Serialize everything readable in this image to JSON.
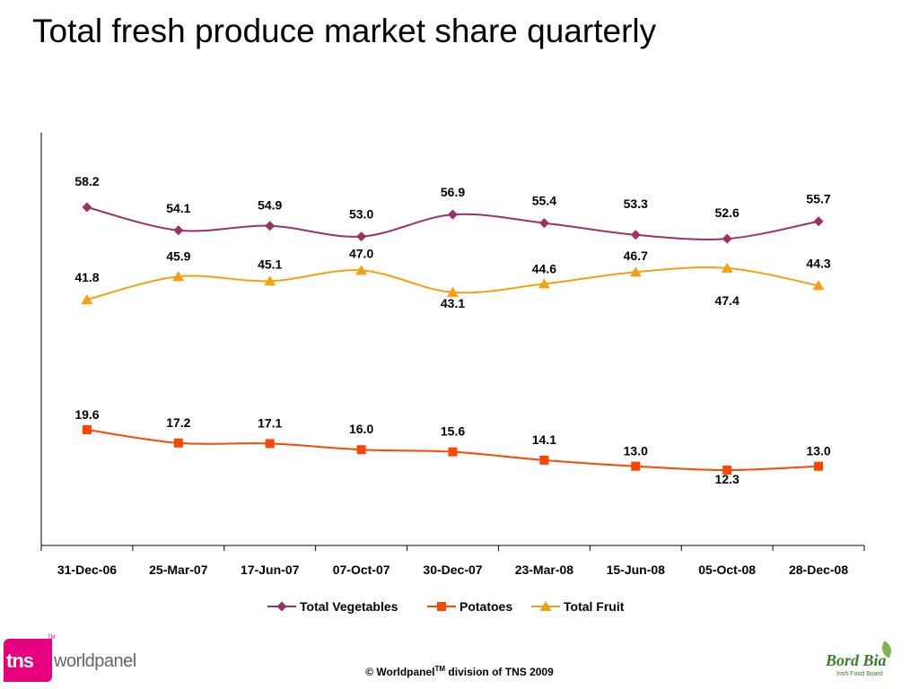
{
  "page": {
    "title": "Total fresh produce market share quarterly",
    "footer_prefix": "© Worldpanel",
    "footer_tm": "TM",
    "footer_suffix": " division of TNS 2009",
    "logo_left": {
      "brand": "tns",
      "product": "worldpanel",
      "tm": "TM",
      "color": "#e6007e"
    },
    "logo_right": {
      "name": "Bord Bia",
      "subtitle": "Irish Food Board",
      "color": "#3a7d2c",
      "leaf_icon": "leaf-icon"
    }
  },
  "chart_data": {
    "type": "line",
    "title": "",
    "xlabel": "",
    "ylabel": "",
    "categories": [
      "31-Dec-06",
      "25-Mar-07",
      "17-Jun-07",
      "07-Oct-07",
      "30-Dec-07",
      "23-Mar-08",
      "15-Jun-08",
      "05-Oct-08",
      "28-Dec-08"
    ],
    "ylim": [
      0,
      70
    ],
    "grid": false,
    "smooth": true,
    "legend_position": "bottom",
    "series": [
      {
        "name": "Total Vegetables",
        "marker": "diamond",
        "color": "#993366",
        "values": [
          58.2,
          54.1,
          54.9,
          53.0,
          56.9,
          55.4,
          53.3,
          52.6,
          55.7
        ],
        "labels": [
          "58.2",
          "54.1",
          "54.9",
          "53.0",
          "56.9",
          "55.4",
          "53.3",
          "52.6",
          "55.7"
        ]
      },
      {
        "name": "Potatoes",
        "marker": "square",
        "color": "#ff4500",
        "values": [
          19.6,
          17.2,
          17.1,
          16.0,
          15.6,
          14.1,
          13.0,
          12.3,
          13.0
        ],
        "labels": [
          "19.6",
          "17.2",
          "17.1",
          "16.0",
          "15.6",
          "14.1",
          "13.0",
          "12.3",
          "13.0"
        ]
      },
      {
        "name": "Total Fruit",
        "marker": "triangle",
        "color": "#f5a00f",
        "values": [
          41.8,
          45.9,
          45.1,
          47.0,
          43.1,
          44.6,
          46.7,
          47.4,
          44.3
        ],
        "labels": [
          "41.8",
          "45.9",
          "45.1",
          "47.0",
          "43.1",
          "44.6",
          "46.7",
          "47.4",
          "44.3"
        ]
      }
    ]
  }
}
